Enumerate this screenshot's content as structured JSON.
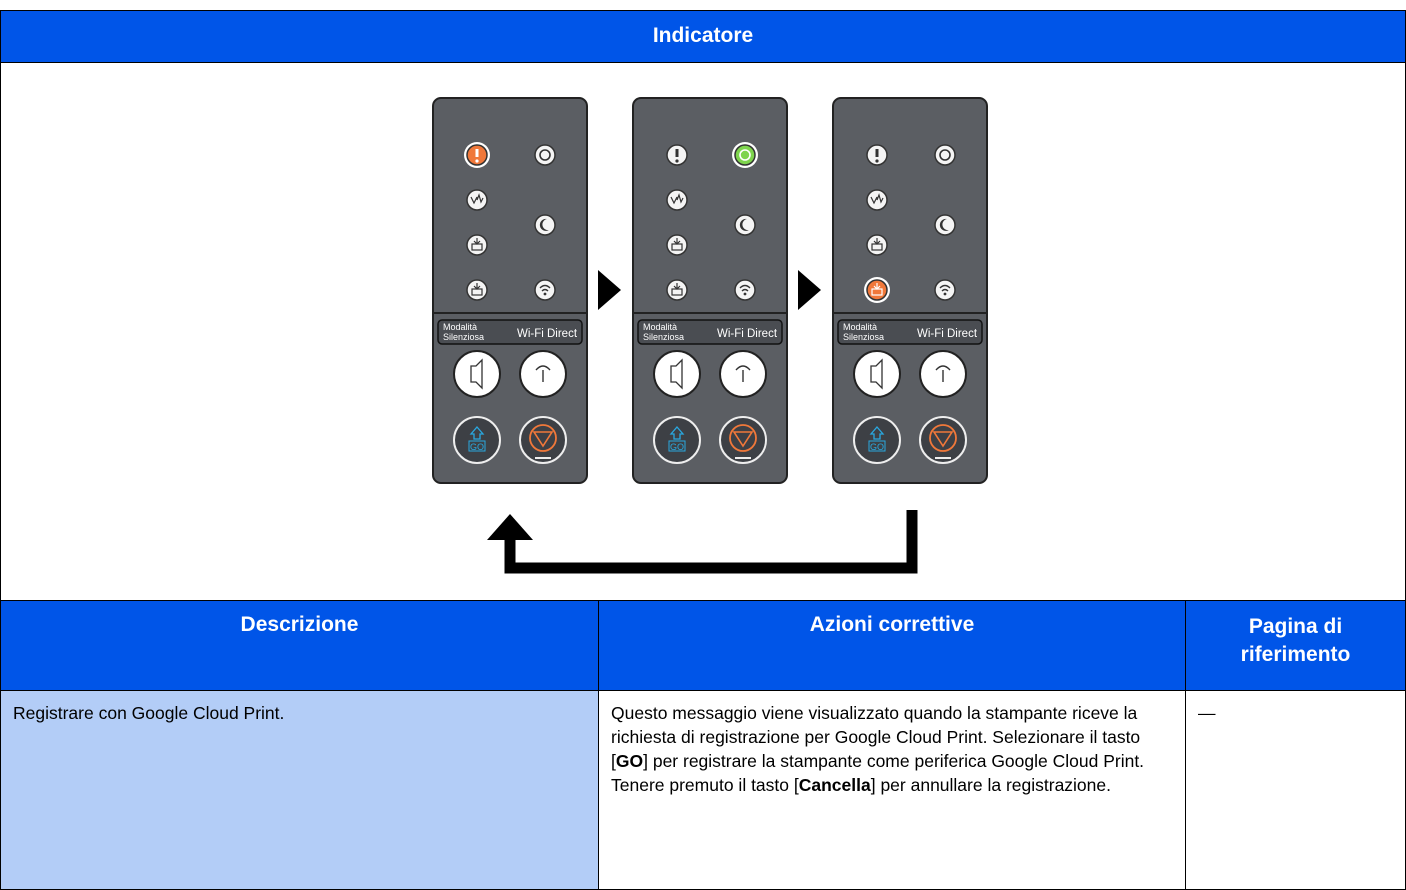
{
  "header": {
    "title": "Indicatore"
  },
  "panel_labels": {
    "quiet_mode": [
      "Modalità",
      "Silenziosa"
    ],
    "wifi_direct": "Wi-Fi Direct",
    "go": "GO"
  },
  "table": {
    "headers": [
      "Descrizione",
      "Azioni correttive",
      "Pagina di riferimento"
    ],
    "rows": [
      [
        "Registrare con Google Cloud Print.",
        [
          {
            "text": "Questo messaggio viene visualizzato quando la stampante riceve la richiesta di registrazione per Google Cloud Print. Selezionare il tasto ["
          },
          {
            "text": "GO",
            "bold": true
          },
          {
            "text": "] per registrare la stampante come periferica Google Cloud Print. Tenere premuto il tasto ["
          },
          {
            "text": "Cancella",
            "bold": true
          },
          {
            "text": "] per annullare la registrazione."
          }
        ],
        "—"
      ]
    ]
  }
}
